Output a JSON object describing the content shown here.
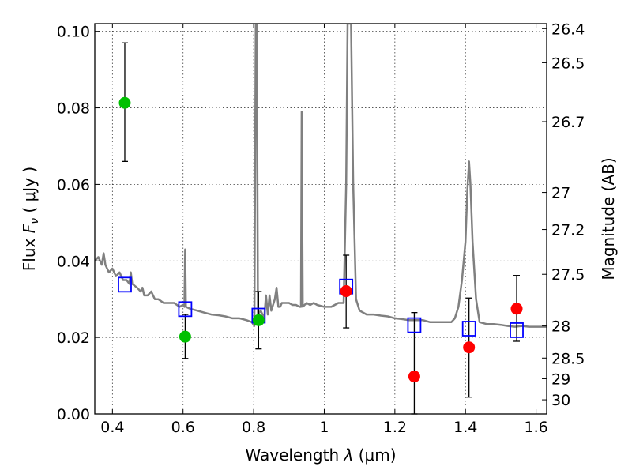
{
  "chart_data": {
    "type": "scatter",
    "xlabel": "Wavelength",
    "xlabel_symbol": "λ",
    "xlabel_unit": "(μm)",
    "ylabel": "Flux",
    "ylabel_symbol": "F",
    "ylabel_symbol_sub": "ν",
    "ylabel_unit": "( μJy )",
    "y2label": "Magnitude (AB)",
    "xlim": [
      0.35,
      1.63
    ],
    "ylim": [
      0.0,
      0.102
    ],
    "grid": true,
    "x_ticks": [
      0.4,
      0.6,
      0.8,
      1.0,
      1.2,
      1.4,
      1.6
    ],
    "x_tick_labels": [
      "0.4",
      "0.6",
      "0.8",
      "1",
      "1.2",
      "1.4",
      "1.6"
    ],
    "y_ticks": [
      0.0,
      0.02,
      0.04,
      0.06,
      0.08,
      0.1
    ],
    "y_tick_labels": [
      "0.00",
      "0.02",
      "0.04",
      "0.06",
      "0.08",
      "0.10"
    ],
    "y2_ticks": [
      {
        "label": "26.4",
        "flux": 0.1007
      },
      {
        "label": "26.5",
        "flux": 0.0918
      },
      {
        "label": "26.7",
        "flux": 0.0764
      },
      {
        "label": "27",
        "flux": 0.0579
      },
      {
        "label": "27.2",
        "flux": 0.0482
      },
      {
        "label": "27.5",
        "flux": 0.0365
      },
      {
        "label": "28",
        "flux": 0.023
      },
      {
        "label": "28.5",
        "flux": 0.0146
      },
      {
        "label": "29",
        "flux": 0.0092
      },
      {
        "label": "30",
        "flux": 0.0037
      }
    ],
    "series": [
      {
        "marker": "circle",
        "color": "#00c000",
        "points": [
          {
            "x": 0.435,
            "y": 0.0813,
            "ylo": 0.066,
            "yhi": 0.097
          },
          {
            "x": 0.606,
            "y": 0.0202,
            "ylo": 0.0145,
            "yhi": 0.026
          },
          {
            "x": 0.814,
            "y": 0.0245,
            "ylo": 0.017,
            "yhi": 0.032
          }
        ]
      },
      {
        "marker": "circle",
        "color": "#ff0000",
        "points": [
          {
            "x": 1.062,
            "y": 0.0321,
            "ylo": 0.0225,
            "yhi": 0.0415
          },
          {
            "x": 1.255,
            "y": 0.0098,
            "ylo": 0.0,
            "yhi": 0.0265
          },
          {
            "x": 1.41,
            "y": 0.0174,
            "ylo": 0.0044,
            "yhi": 0.0303
          },
          {
            "x": 1.545,
            "y": 0.0275,
            "ylo": 0.019,
            "yhi": 0.0362
          }
        ]
      },
      {
        "marker": "square-open",
        "color": "#0000ff",
        "points": [
          {
            "x": 0.435,
            "y": 0.0338
          },
          {
            "x": 0.606,
            "y": 0.0274
          },
          {
            "x": 0.814,
            "y": 0.0257
          },
          {
            "x": 1.062,
            "y": 0.0333
          },
          {
            "x": 1.255,
            "y": 0.0232
          },
          {
            "x": 1.41,
            "y": 0.0223
          },
          {
            "x": 1.545,
            "y": 0.0219
          }
        ]
      },
      {
        "type": "line",
        "color": "#808080",
        "points": [
          [
            0.35,
            0.04
          ],
          [
            0.36,
            0.041
          ],
          [
            0.37,
            0.039
          ],
          [
            0.375,
            0.042
          ],
          [
            0.38,
            0.039
          ],
          [
            0.39,
            0.037
          ],
          [
            0.4,
            0.038
          ],
          [
            0.41,
            0.036
          ],
          [
            0.42,
            0.037
          ],
          [
            0.43,
            0.035
          ],
          [
            0.44,
            0.035
          ],
          [
            0.448,
            0.034
          ],
          [
            0.452,
            0.037
          ],
          [
            0.456,
            0.034
          ],
          [
            0.47,
            0.033
          ],
          [
            0.48,
            0.032
          ],
          [
            0.485,
            0.033
          ],
          [
            0.49,
            0.031
          ],
          [
            0.5,
            0.031
          ],
          [
            0.51,
            0.032
          ],
          [
            0.52,
            0.03
          ],
          [
            0.53,
            0.03
          ],
          [
            0.545,
            0.029
          ],
          [
            0.56,
            0.029
          ],
          [
            0.575,
            0.029
          ],
          [
            0.59,
            0.028
          ],
          [
            0.6,
            0.0285
          ],
          [
            0.604,
            0.028
          ],
          [
            0.606,
            0.043
          ],
          [
            0.608,
            0.028
          ],
          [
            0.62,
            0.0275
          ],
          [
            0.64,
            0.027
          ],
          [
            0.66,
            0.0265
          ],
          [
            0.68,
            0.026
          ],
          [
            0.7,
            0.0258
          ],
          [
            0.72,
            0.0255
          ],
          [
            0.74,
            0.025
          ],
          [
            0.76,
            0.025
          ],
          [
            0.78,
            0.0245
          ],
          [
            0.795,
            0.024
          ],
          [
            0.802,
            0.023
          ],
          [
            0.806,
            0.102
          ],
          [
            0.809,
            0.102
          ],
          [
            0.812,
            0.026
          ],
          [
            0.82,
            0.027
          ],
          [
            0.83,
            0.025
          ],
          [
            0.835,
            0.031
          ],
          [
            0.84,
            0.026
          ],
          [
            0.845,
            0.031
          ],
          [
            0.85,
            0.027
          ],
          [
            0.86,
            0.03
          ],
          [
            0.865,
            0.033
          ],
          [
            0.87,
            0.028
          ],
          [
            0.875,
            0.028
          ],
          [
            0.88,
            0.029
          ],
          [
            0.89,
            0.029
          ],
          [
            0.9,
            0.029
          ],
          [
            0.91,
            0.0285
          ],
          [
            0.92,
            0.0285
          ],
          [
            0.93,
            0.028
          ],
          [
            0.934,
            0.028
          ],
          [
            0.936,
            0.079
          ],
          [
            0.939,
            0.028
          ],
          [
            0.95,
            0.029
          ],
          [
            0.96,
            0.0285
          ],
          [
            0.97,
            0.029
          ],
          [
            0.98,
            0.0285
          ],
          [
            1.0,
            0.028
          ],
          [
            1.02,
            0.028
          ],
          [
            1.04,
            0.029
          ],
          [
            1.055,
            0.029
          ],
          [
            1.062,
            0.06
          ],
          [
            1.066,
            0.102
          ],
          [
            1.076,
            0.102
          ],
          [
            1.082,
            0.06
          ],
          [
            1.09,
            0.03
          ],
          [
            1.1,
            0.027
          ],
          [
            1.12,
            0.026
          ],
          [
            1.14,
            0.026
          ],
          [
            1.16,
            0.0257
          ],
          [
            1.18,
            0.0255
          ],
          [
            1.2,
            0.025
          ],
          [
            1.22,
            0.0248
          ],
          [
            1.24,
            0.0245
          ],
          [
            1.26,
            0.0245
          ],
          [
            1.28,
            0.0245
          ],
          [
            1.3,
            0.024
          ],
          [
            1.32,
            0.024
          ],
          [
            1.34,
            0.024
          ],
          [
            1.36,
            0.024
          ],
          [
            1.37,
            0.025
          ],
          [
            1.38,
            0.028
          ],
          [
            1.39,
            0.035
          ],
          [
            1.4,
            0.045
          ],
          [
            1.405,
            0.058
          ],
          [
            1.41,
            0.066
          ],
          [
            1.414,
            0.06
          ],
          [
            1.42,
            0.045
          ],
          [
            1.43,
            0.03
          ],
          [
            1.44,
            0.024
          ],
          [
            1.46,
            0.0235
          ],
          [
            1.48,
            0.0235
          ],
          [
            1.5,
            0.0233
          ],
          [
            1.52,
            0.023
          ],
          [
            1.54,
            0.0228
          ],
          [
            1.56,
            0.023
          ],
          [
            1.58,
            0.0228
          ],
          [
            1.6,
            0.0228
          ],
          [
            1.63,
            0.0228
          ]
        ]
      }
    ]
  }
}
